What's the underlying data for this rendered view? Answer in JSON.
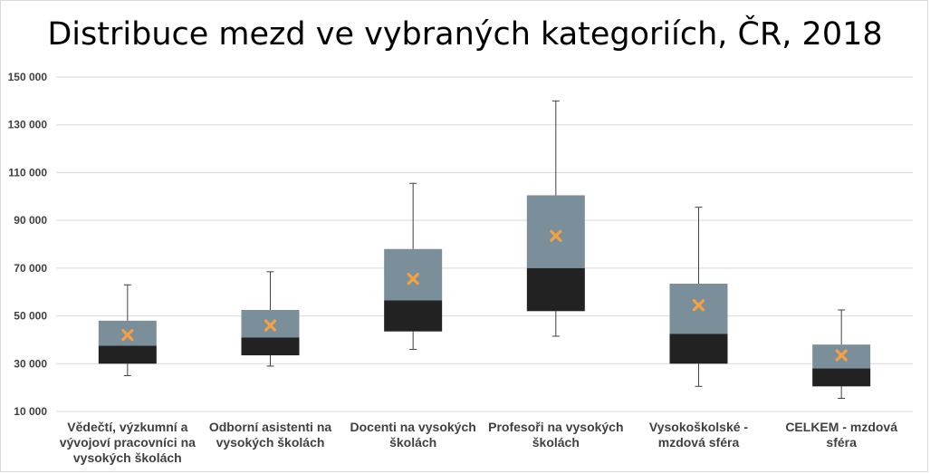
{
  "chart_data": {
    "type": "boxplot",
    "title": "Distribuce mezd ve vybraných kategoriích, ČR, 2018",
    "xlabel": "",
    "ylabel": "",
    "ylim": [
      10000,
      150000
    ],
    "yticks": [
      10000,
      30000,
      50000,
      70000,
      90000,
      110000,
      130000,
      150000
    ],
    "ytick_labels": [
      "10 000",
      "30 000",
      "50 000",
      "70 000",
      "90 000",
      "110 000",
      "130 000",
      "150 000"
    ],
    "grid": true,
    "legend": "none",
    "categories": [
      "Vědečtí, výzkumní a vývojoví pracovníci na vysokých školách",
      "Odborní asistenti na vysokých školách",
      "Docenti na vysokých školách",
      "Profesoři na vysokých školách",
      "Vysokoškolské - mzdová sféra",
      "CELKEM - mzdová sféra"
    ],
    "category_label_lines": [
      [
        "Vědečtí, výzkumní a",
        "vývojoví pracovníci na",
        "vysokých školách"
      ],
      [
        "Odborní asistenti na",
        "vysokých školách"
      ],
      [
        "Docenti na vysokých",
        "školách"
      ],
      [
        "Profesoři na vysokých",
        "školách"
      ],
      [
        "Vysokoškolské -",
        "mzdová sféra"
      ],
      [
        "CELKEM - mzdová",
        "sféra"
      ]
    ],
    "series": [
      {
        "min": 25000,
        "q1": 30000,
        "median": 37500,
        "q3": 48000,
        "max": 63000,
        "mean": 42000
      },
      {
        "min": 29000,
        "q1": 33500,
        "median": 41000,
        "q3": 52500,
        "max": 68500,
        "mean": 46000
      },
      {
        "min": 36000,
        "q1": 43500,
        "median": 56500,
        "q3": 78000,
        "max": 105500,
        "mean": 65500
      },
      {
        "min": 41500,
        "q1": 52000,
        "median": 70000,
        "q3": 100500,
        "max": 140000,
        "mean": 83500
      },
      {
        "min": 20500,
        "q1": 30000,
        "median": 42500,
        "q3": 63500,
        "max": 95500,
        "mean": 54500
      },
      {
        "min": 15500,
        "q1": 20500,
        "median": 28000,
        "q3": 38000,
        "max": 52500,
        "mean": 33500
      }
    ],
    "colors": {
      "lower_box": "#222222",
      "upper_box": "#7b8f9b",
      "mean_marker": "#f5a142",
      "whisker": "#404040",
      "grid": "#d9d9d9",
      "axis_text": "#404040"
    }
  }
}
